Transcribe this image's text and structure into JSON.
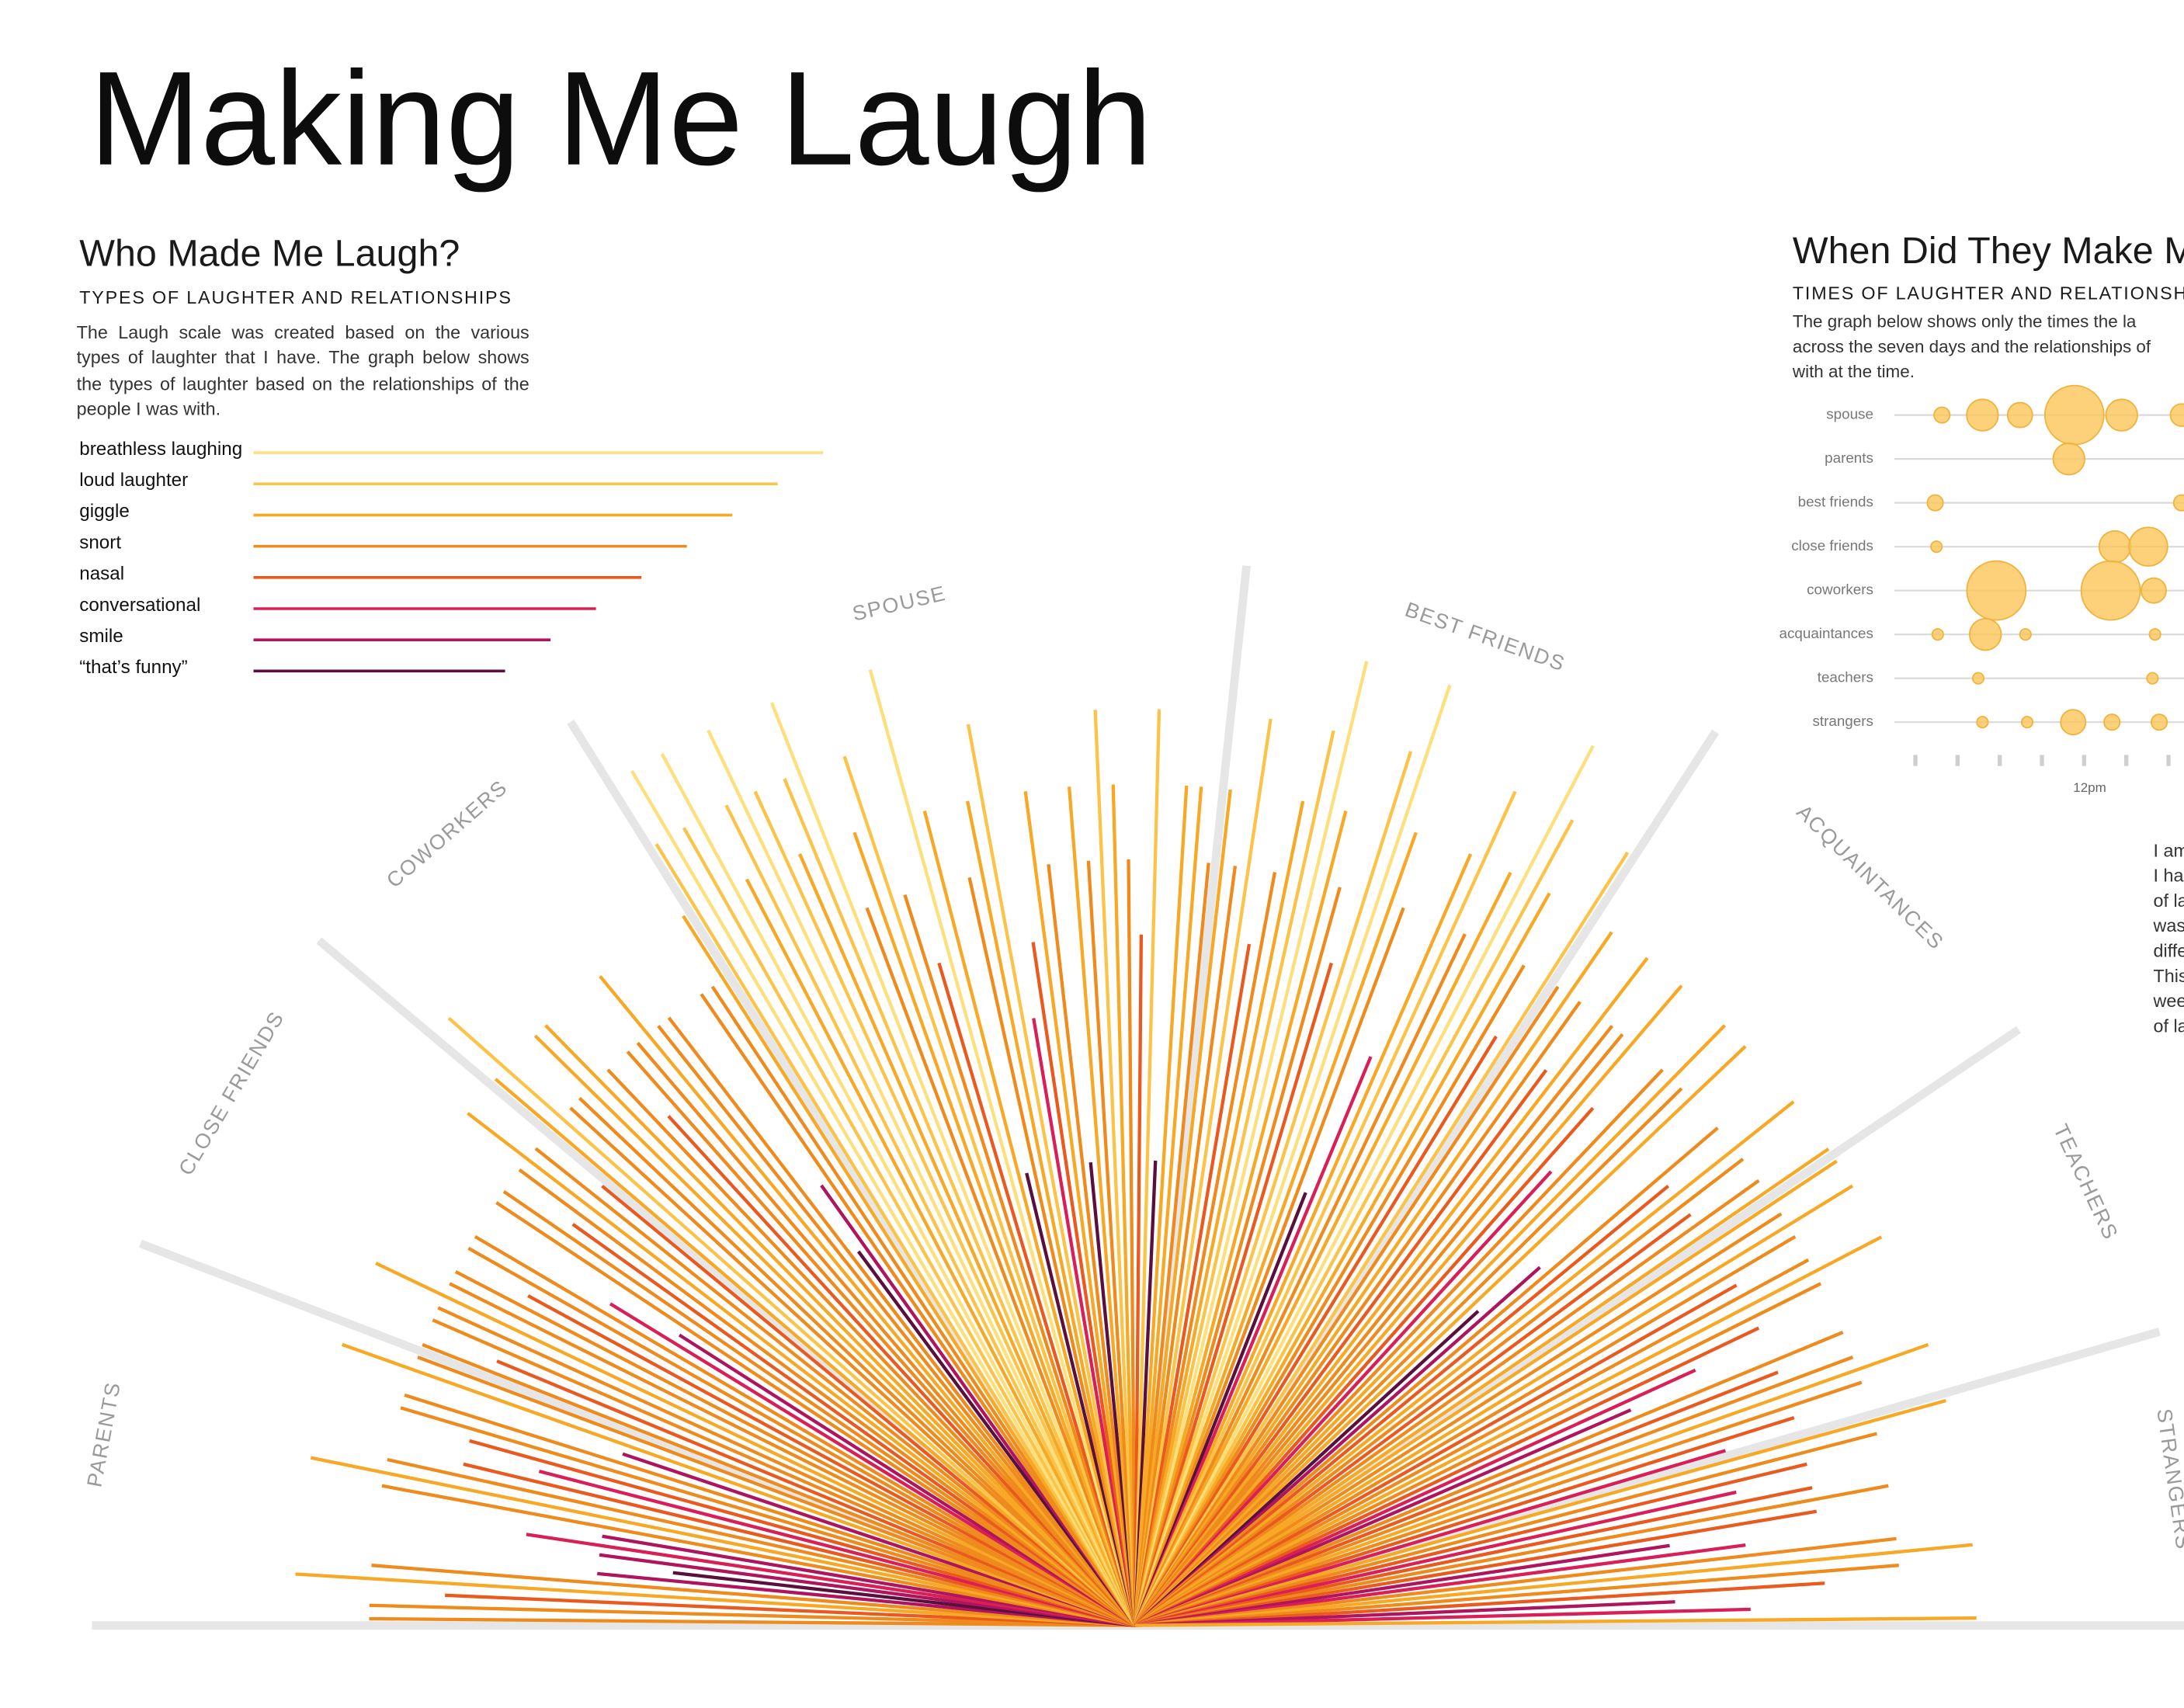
{
  "title": "Making Me Laugh",
  "left_panel": {
    "heading": "Who Made Me Laugh?",
    "subheading": "TYPES OF LAUGHTER AND RELATIONSHIPS",
    "description": "The Laugh scale was created based on the various types of laughter that I have. The graph below shows the types of laughter based on the relationships of the people I was with."
  },
  "right_panel": {
    "heading": "When Did They Make M",
    "subheading": "TIMES OF LAUGHTER AND RELATIONSHI",
    "description_lines": [
      "The graph below shows only the times the la",
      "across the seven days and the relationships of",
      "with at the time."
    ],
    "note_lines": [
      "I am",
      "I ha",
      "of la",
      "was",
      "diffe",
      "This",
      "wee",
      "of la"
    ]
  },
  "chart_data": [
    {
      "type": "radial",
      "legend": [
        {
          "name": "breathless laughing",
          "color": "#fde07c",
          "scale": 8
        },
        {
          "name": "loud laughter",
          "color": "#fbc448",
          "scale": 7
        },
        {
          "name": "giggle",
          "color": "#f7a825",
          "scale": 6
        },
        {
          "name": "snort",
          "color": "#ef8a1c",
          "scale": 5
        },
        {
          "name": "nasal",
          "color": "#ea5a1e",
          "scale": 4
        },
        {
          "name": "conversational",
          "color": "#d91f56",
          "scale": 3
        },
        {
          "name": "smile",
          "color": "#ae155c",
          "scale": 2
        },
        {
          "name": "“that’s funny”",
          "color": "#5a0f3c",
          "scale": 1
        }
      ],
      "rlim": [
        0,
        8
      ],
      "sectors": [
        {
          "name": "PARENTS",
          "laughs": [
            5,
            5,
            4,
            6,
            5,
            2,
            1,
            2,
            3,
            2,
            5,
            6,
            5,
            4,
            3,
            4,
            5,
            5,
            2,
            6,
            5
          ]
        },
        {
          "name": "CLOSE FRIENDS",
          "laughs": [
            5,
            4,
            5,
            5,
            6,
            5,
            5,
            4,
            5,
            5,
            3,
            2,
            5,
            5,
            4,
            5,
            6,
            5,
            4
          ]
        },
        {
          "name": "COWORKERS",
          "laughs": [
            6,
            7,
            5,
            5,
            6,
            6,
            5,
            4,
            5,
            5,
            6,
            5,
            5,
            1,
            2,
            5,
            5,
            6
          ]
        },
        {
          "name": "SPOUSE",
          "laughs": [
            7,
            8,
            7,
            8,
            6,
            7,
            8,
            7,
            6,
            7,
            8,
            5,
            6,
            7,
            5,
            4,
            8,
            6,
            1,
            5,
            6,
            7,
            3,
            4,
            6,
            5,
            1,
            6,
            5,
            7,
            6,
            5,
            4,
            7,
            1,
            6,
            6,
            5
          ]
        },
        {
          "name": "BEST FRIENDS",
          "laughs": [
            6,
            5,
            7,
            4,
            5,
            6,
            7,
            8,
            6,
            5,
            4,
            7,
            8,
            6,
            5,
            1,
            3,
            6,
            7,
            5,
            6,
            8,
            7,
            6,
            5,
            4,
            7
          ]
        },
        {
          "name": "ACQUAINTANCES",
          "laughs": [
            5,
            6,
            5,
            4,
            6,
            5,
            5,
            6,
            4,
            3,
            5,
            6,
            5,
            6,
            1,
            2,
            5,
            4,
            6,
            5,
            4,
            5,
            6
          ]
        },
        {
          "name": "TEACHERS",
          "laughs": [
            6,
            5,
            6,
            5,
            4,
            5,
            6,
            5,
            4,
            3,
            2,
            5,
            4,
            5,
            6,
            5,
            4,
            3
          ]
        },
        {
          "name": "STRANGERS",
          "laughs": [
            6,
            5,
            4,
            3,
            4,
            5,
            4,
            2,
            3,
            5,
            6,
            5,
            4,
            2,
            3,
            6
          ]
        }
      ]
    },
    {
      "type": "bubble",
      "color": "#fbc658",
      "xlim": [
        7.5,
        14.5
      ],
      "xticks": [
        {
          "value": 8,
          "label": null
        },
        {
          "value": 9,
          "label": null
        },
        {
          "value": 10,
          "label": null
        },
        {
          "value": 11,
          "label": null
        },
        {
          "value": 12,
          "label": "12pm"
        },
        {
          "value": 13,
          "label": null
        },
        {
          "value": 14,
          "label": null
        }
      ],
      "rows": [
        {
          "name": "spouse",
          "x": [
            8.63,
            9.59,
            10.48,
            11.77,
            12.89,
            14.31
          ],
          "sizes": [
            2,
            8,
            5,
            28,
            8,
            4
          ]
        },
        {
          "name": "parents",
          "x": [
            11.64
          ],
          "sizes": [
            8
          ]
        },
        {
          "name": "best friends",
          "x": [
            8.47,
            14.31
          ],
          "sizes": [
            2,
            2
          ]
        },
        {
          "name": "close friends",
          "x": [
            8.5,
            12.73,
            13.52
          ],
          "sizes": [
            1,
            8,
            12
          ]
        },
        {
          "name": "coworkers",
          "x": [
            9.92,
            12.63,
            13.65
          ],
          "sizes": [
            28,
            28,
            5
          ]
        },
        {
          "name": "acquaintances",
          "x": [
            8.53,
            9.66,
            10.61,
            13.68
          ],
          "sizes": [
            1,
            8,
            1,
            1
          ]
        },
        {
          "name": "teachers",
          "x": [
            9.49,
            13.62
          ],
          "sizes": [
            1,
            1
          ]
        },
        {
          "name": "strangers",
          "x": [
            9.59,
            10.65,
            11.74,
            12.66,
            13.78
          ],
          "sizes": [
            1,
            1,
            5,
            2,
            2
          ]
        }
      ]
    }
  ]
}
